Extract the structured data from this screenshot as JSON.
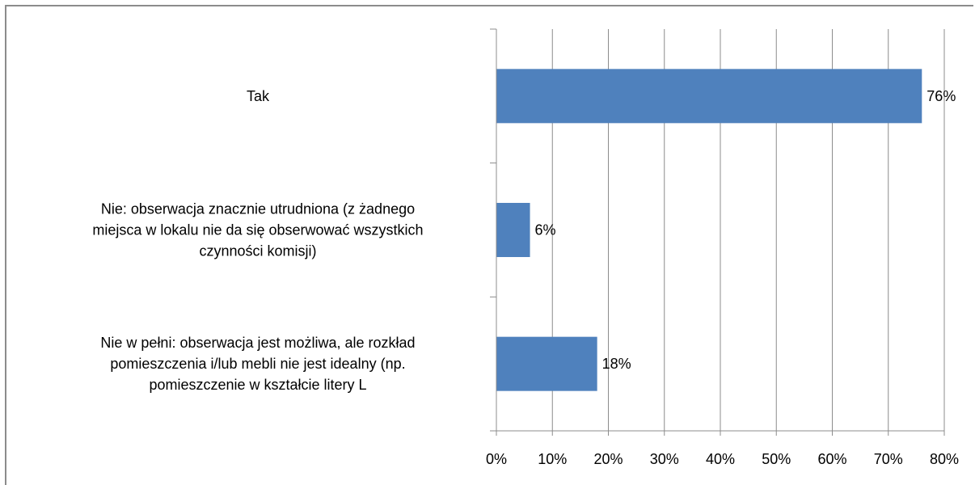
{
  "chart_data": {
    "type": "bar",
    "orientation": "horizontal",
    "categories": [
      [
        "Tak"
      ],
      [
        "Nie: obserwacja znacznie utrudniona (z żadnego",
        "miejsca w lokalu nie da się obserwować wszystkich",
        "czynności komisji)"
      ],
      [
        "Nie w pełni: obserwacja jest możliwa, ale rozkład",
        "pomieszczenia i/lub mebli nie jest idealny (np.",
        "pomieszczenie w kształcie litery L"
      ]
    ],
    "values": [
      76,
      6,
      18
    ],
    "data_labels": [
      "76%",
      "6%",
      "18%"
    ],
    "x_ticks": [
      "0%",
      "10%",
      "20%",
      "30%",
      "40%",
      "50%",
      "60%",
      "70%",
      "80%"
    ],
    "xlim": [
      0,
      80
    ],
    "grid": true,
    "legend": "none",
    "bar_color": "#4f81bd",
    "title": "",
    "xlabel": "",
    "ylabel": ""
  }
}
